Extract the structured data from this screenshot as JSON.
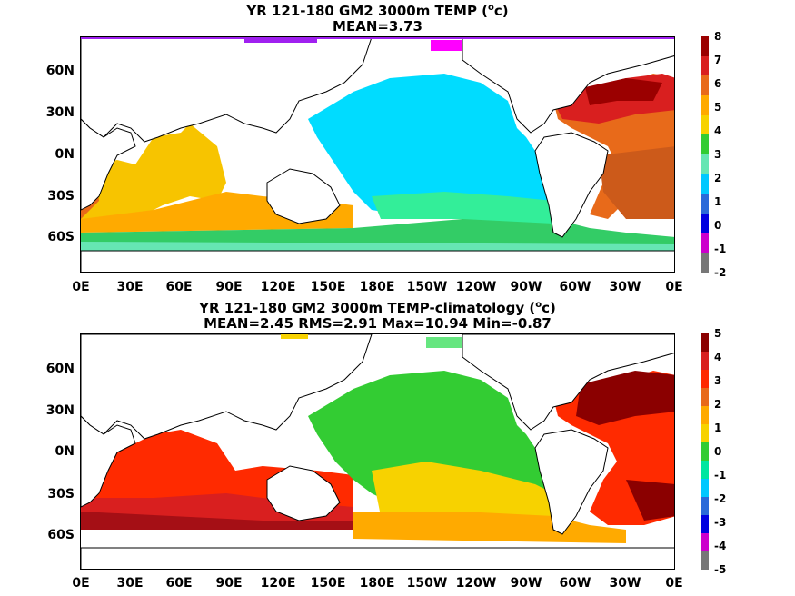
{
  "panel1": {
    "title_line1_pre": "YR 121-180 GM2 3000m TEMP (",
    "title_sup": "o",
    "title_line1_post": "c)",
    "title_line2": "MEAN=3.73",
    "colorbar_labels": [
      "8",
      "7",
      "6",
      "5",
      "4",
      "3",
      "2",
      "1",
      "0",
      "-1",
      "-2"
    ],
    "colorbar_colors": [
      "#9b0000",
      "#d91f1f",
      "#e86a1a",
      "#ffaa00",
      "#f7d200",
      "#33cc33",
      "#66e6b3",
      "#00c8ff",
      "#2a6ad9",
      "#0000e0",
      "#cc00cc",
      "#777777"
    ]
  },
  "panel2": {
    "title_line1_pre": "YR 121-180 GM2 3000m TEMP-climatology (",
    "title_sup": "o",
    "title_line1_post": "c)",
    "title_line2": "MEAN=2.45   RMS=2.91   Max=10.94   Min=-0.87",
    "colorbar_labels": [
      "5",
      "4",
      "3",
      "2",
      "1",
      "0",
      "-1",
      "-2",
      "-3",
      "-4",
      "-5"
    ],
    "colorbar_colors": [
      "#8b0000",
      "#d91f1f",
      "#ff2a00",
      "#e86a1a",
      "#ffaa00",
      "#f7d200",
      "#33cc33",
      "#00e6a0",
      "#00c8ff",
      "#2a6ad9",
      "#0000e0",
      "#cc00cc",
      "#777777"
    ]
  },
  "lat_labels": [
    "60N",
    "30N",
    "0N",
    "30S",
    "60S"
  ],
  "lon_labels": [
    "0E",
    "30E",
    "60E",
    "90E",
    "120E",
    "150E",
    "180E",
    "150W",
    "120W",
    "90W",
    "60W",
    "30W",
    "0E"
  ]
}
